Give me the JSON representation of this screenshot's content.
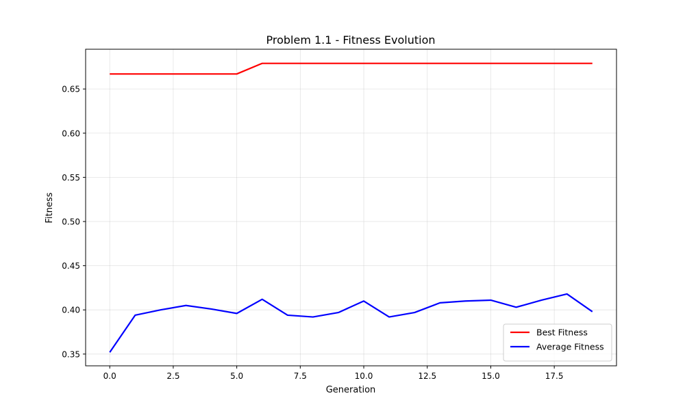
{
  "chart_data": {
    "type": "line",
    "title": "Problem 1.1 - Fitness Evolution",
    "xlabel": "Generation",
    "ylabel": "Fitness",
    "xlim": [
      -0.95,
      19.95
    ],
    "ylim": [
      0.3367,
      0.695
    ],
    "xticks": [
      0,
      2.5,
      5,
      7.5,
      10,
      12.5,
      15,
      17.5
    ],
    "xtick_labels": [
      "0.0",
      "2.5",
      "5.0",
      "7.5",
      "10.0",
      "12.5",
      "15.0",
      "17.5"
    ],
    "yticks": [
      0.35,
      0.4,
      0.45,
      0.5,
      0.55,
      0.6,
      0.65
    ],
    "ytick_labels": [
      "0.35",
      "0.40",
      "0.45",
      "0.50",
      "0.55",
      "0.60",
      "0.65"
    ],
    "grid": true,
    "legend_position": "lower-right",
    "x": [
      0,
      1,
      2,
      3,
      4,
      5,
      6,
      7,
      8,
      9,
      10,
      11,
      12,
      13,
      14,
      15,
      16,
      17,
      18,
      19
    ],
    "series": [
      {
        "name": "Best Fitness",
        "color": "#ff0000",
        "values": [
          0.667,
          0.667,
          0.667,
          0.667,
          0.667,
          0.667,
          0.679,
          0.679,
          0.679,
          0.679,
          0.679,
          0.679,
          0.679,
          0.679,
          0.679,
          0.679,
          0.679,
          0.679,
          0.679,
          0.679
        ]
      },
      {
        "name": "Average Fitness",
        "color": "#0000ff",
        "values": [
          0.352,
          0.394,
          0.4,
          0.405,
          0.401,
          0.396,
          0.412,
          0.394,
          0.392,
          0.397,
          0.41,
          0.392,
          0.397,
          0.408,
          0.41,
          0.411,
          0.403,
          0.411,
          0.418,
          0.398
        ]
      }
    ]
  }
}
